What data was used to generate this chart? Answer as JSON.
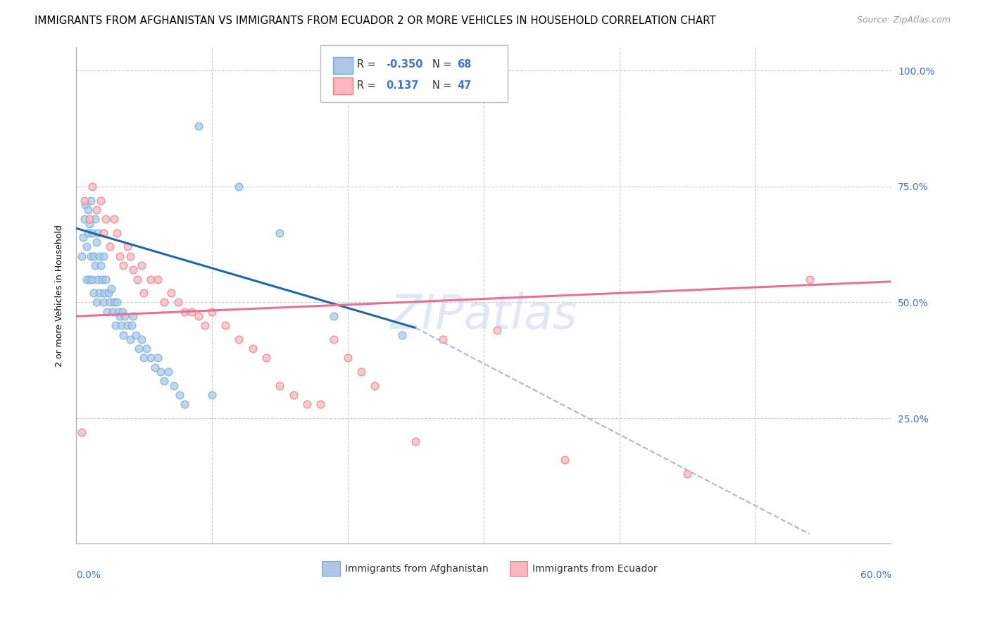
{
  "title": "IMMIGRANTS FROM AFGHANISTAN VS IMMIGRANTS FROM ECUADOR 2 OR MORE VEHICLES IN HOUSEHOLD CORRELATION CHART",
  "source": "Source: ZipAtlas.com",
  "ylabel": "2 or more Vehicles in Household",
  "xlim": [
    0.0,
    0.6
  ],
  "ylim": [
    -0.02,
    1.05
  ],
  "afghanistan_fill": "#aec7e8",
  "afghanistan_edge": "#6baed6",
  "ecuador_fill": "#ffb6c1",
  "ecuador_edge": "#e08080",
  "afghanistan_line_color": "#2166ac",
  "ecuador_line_color": "#e87090",
  "dashed_line_color": "#b0b8c8",
  "R_afghanistan": -0.35,
  "N_afghanistan": 68,
  "R_ecuador": 0.137,
  "N_ecuador": 47,
  "legend_label_afg": "Immigrants from Afghanistan",
  "legend_label_ecu": "Immigrants from Ecuador",
  "watermark": "ZIPatlas",
  "background_color": "#ffffff",
  "grid_color": "#cccccc",
  "right_ytick_color": "#4472c4",
  "marker_size": 60,
  "afghanistan_scatter_x": [
    0.004,
    0.005,
    0.006,
    0.007,
    0.008,
    0.008,
    0.009,
    0.009,
    0.01,
    0.01,
    0.011,
    0.011,
    0.012,
    0.012,
    0.013,
    0.013,
    0.014,
    0.014,
    0.015,
    0.015,
    0.016,
    0.016,
    0.017,
    0.017,
    0.018,
    0.019,
    0.02,
    0.02,
    0.021,
    0.022,
    0.023,
    0.024,
    0.025,
    0.026,
    0.027,
    0.028,
    0.029,
    0.03,
    0.031,
    0.032,
    0.033,
    0.034,
    0.035,
    0.036,
    0.038,
    0.04,
    0.041,
    0.042,
    0.044,
    0.046,
    0.048,
    0.05,
    0.052,
    0.055,
    0.058,
    0.06,
    0.062,
    0.065,
    0.068,
    0.072,
    0.076,
    0.08,
    0.09,
    0.1,
    0.12,
    0.15,
    0.19,
    0.24
  ],
  "afghanistan_scatter_y": [
    0.6,
    0.64,
    0.68,
    0.71,
    0.55,
    0.62,
    0.65,
    0.7,
    0.55,
    0.67,
    0.6,
    0.72,
    0.55,
    0.65,
    0.52,
    0.6,
    0.58,
    0.68,
    0.5,
    0.63,
    0.55,
    0.65,
    0.52,
    0.6,
    0.58,
    0.55,
    0.5,
    0.6,
    0.52,
    0.55,
    0.48,
    0.52,
    0.5,
    0.53,
    0.48,
    0.5,
    0.45,
    0.5,
    0.48,
    0.47,
    0.45,
    0.48,
    0.43,
    0.47,
    0.45,
    0.42,
    0.45,
    0.47,
    0.43,
    0.4,
    0.42,
    0.38,
    0.4,
    0.38,
    0.36,
    0.38,
    0.35,
    0.33,
    0.35,
    0.32,
    0.3,
    0.28,
    0.88,
    0.3,
    0.75,
    0.65,
    0.47,
    0.43
  ],
  "ecuador_scatter_x": [
    0.004,
    0.006,
    0.01,
    0.012,
    0.015,
    0.018,
    0.02,
    0.022,
    0.025,
    0.028,
    0.03,
    0.032,
    0.035,
    0.038,
    0.04,
    0.042,
    0.045,
    0.048,
    0.05,
    0.055,
    0.06,
    0.065,
    0.07,
    0.075,
    0.08,
    0.085,
    0.09,
    0.095,
    0.1,
    0.11,
    0.12,
    0.13,
    0.14,
    0.15,
    0.16,
    0.17,
    0.18,
    0.19,
    0.2,
    0.21,
    0.22,
    0.25,
    0.27,
    0.31,
    0.36,
    0.45,
    0.54
  ],
  "ecuador_scatter_y": [
    0.22,
    0.72,
    0.68,
    0.75,
    0.7,
    0.72,
    0.65,
    0.68,
    0.62,
    0.68,
    0.65,
    0.6,
    0.58,
    0.62,
    0.6,
    0.57,
    0.55,
    0.58,
    0.52,
    0.55,
    0.55,
    0.5,
    0.52,
    0.5,
    0.48,
    0.48,
    0.47,
    0.45,
    0.48,
    0.45,
    0.42,
    0.4,
    0.38,
    0.32,
    0.3,
    0.28,
    0.28,
    0.42,
    0.38,
    0.35,
    0.32,
    0.2,
    0.42,
    0.44,
    0.16,
    0.13,
    0.55
  ],
  "afg_trend_x0": 0.0,
  "afg_trend_y0": 0.66,
  "afg_trend_x1": 0.25,
  "afg_trend_y1": 0.445,
  "dash_trend_x0": 0.25,
  "dash_trend_y0": 0.445,
  "dash_trend_x1": 0.54,
  "dash_trend_y1": 0.0,
  "ecu_trend_x0": 0.0,
  "ecu_trend_y0": 0.47,
  "ecu_trend_x1": 0.6,
  "ecu_trend_y1": 0.545
}
